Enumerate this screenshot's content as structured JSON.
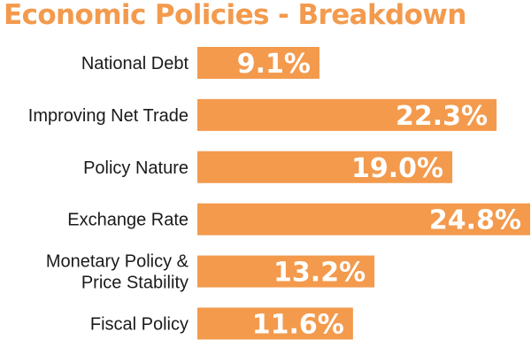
{
  "chart_data": {
    "type": "bar",
    "orientation": "horizontal",
    "title": "Economic Policies - Breakdown",
    "categories": [
      [
        "National Debt"
      ],
      [
        "Improving Net Trade"
      ],
      [
        "Policy Nature"
      ],
      [
        "Exchange Rate"
      ],
      [
        "Monetary Policy &",
        "Price Stability"
      ],
      [
        "Fiscal Policy"
      ]
    ],
    "values": [
      9.1,
      22.3,
      19.0,
      24.8,
      13.2,
      11.6
    ],
    "value_labels": [
      "9.1%",
      "22.3%",
      "19.0%",
      "24.8%",
      "13.2%",
      "11.6%"
    ],
    "xlim": [
      0,
      24.8
    ],
    "grid": false,
    "legend": "none",
    "colors": {
      "bar": "#f39a4d",
      "title": "#f39a4d",
      "label": "#1a1a1a",
      "value_text": "#ffffff"
    }
  }
}
